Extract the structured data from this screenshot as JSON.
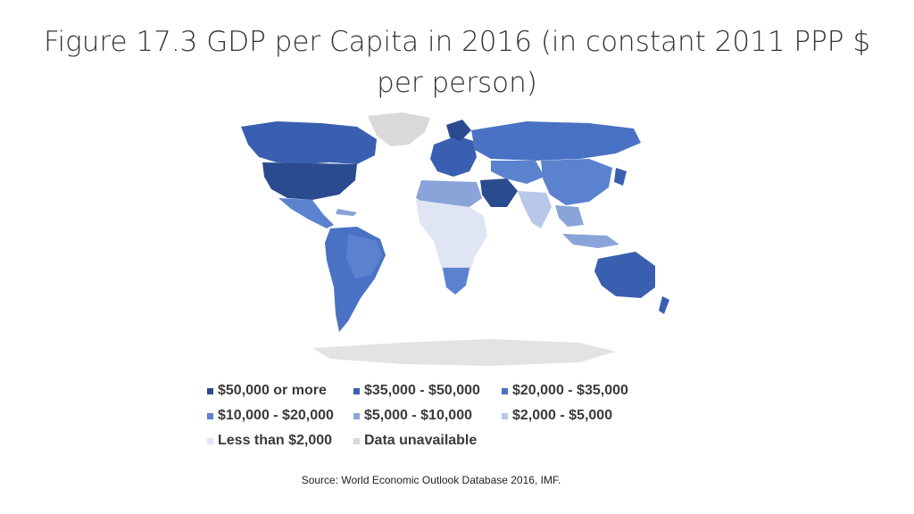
{
  "title": {
    "line1": "Figure 17.3 GDP per Capita in 2016 (in constant 2011 PPP $",
    "line2": "per person)"
  },
  "legend": [
    {
      "label": "$50,000 or more",
      "color": "#2b4b8f"
    },
    {
      "label": "$35,000 - $50,000",
      "color": "#3a5fb0"
    },
    {
      "label": "$20,000 - $35,000",
      "color": "#4a72c4"
    },
    {
      "label": "$10,000 - $20,000",
      "color": "#5b82cf"
    },
    {
      "label": "$5,000 - $10,000",
      "color": "#8aa3d9"
    },
    {
      "label": "$2,000 - $5,000",
      "color": "#b8c8ea"
    },
    {
      "label": "Less than $2,000",
      "color": "#dfe5f3"
    },
    {
      "label": "Data unavailable",
      "color": "#d9d9d9"
    }
  ],
  "source": "Source: World Economic Outlook Database 2016, IMF."
}
